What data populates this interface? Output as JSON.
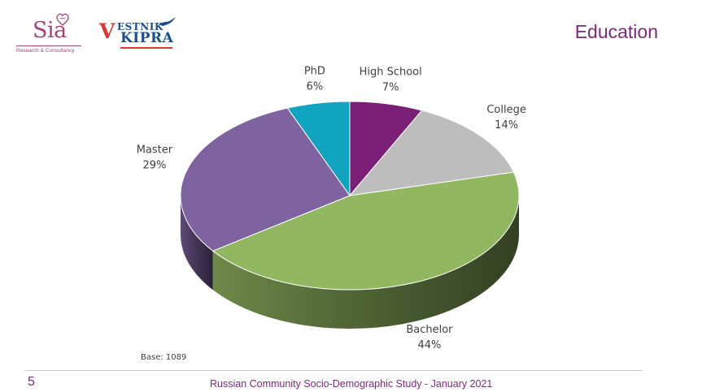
{
  "logos": {
    "sia": {
      "word": "Sia",
      "subtitle": "Research & Consultancy"
    },
    "vestnik": {
      "initial": "V",
      "top": "ESTNIK",
      "bottom": "KIPRA"
    }
  },
  "slide": {
    "title": "Education",
    "base_note": "Base: 1089",
    "page_number": "5",
    "footer": "Russian Community Socio-Demographic Study - January 2021"
  },
  "chart_data": {
    "type": "pie",
    "style": "3d",
    "title": "",
    "slices": [
      {
        "label": "High School",
        "value": 7,
        "value_label": "7%",
        "color": "#7b1f76"
      },
      {
        "label": "College",
        "value": 14,
        "value_label": "14%",
        "color": "#bdbdbd"
      },
      {
        "label": "Bachelor",
        "value": 44,
        "value_label": "44%",
        "color": "#92b761"
      },
      {
        "label": "Master",
        "value": 29,
        "value_label": "29%",
        "color": "#7f62a0"
      },
      {
        "label": "PhD",
        "value": 6,
        "value_label": "6%",
        "color": "#10a4c1"
      }
    ],
    "legend": "none",
    "labels": "outside"
  }
}
